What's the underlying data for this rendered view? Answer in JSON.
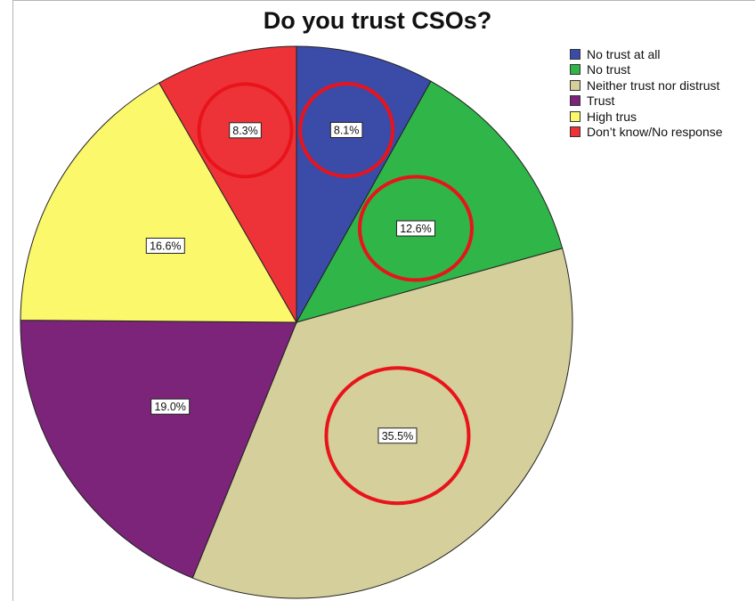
{
  "chart_data": {
    "type": "pie",
    "title": "Do you trust CSOs?",
    "start_angle_deg": 0,
    "direction": "clockwise",
    "label_format": "{value}%",
    "slices": [
      {
        "label": "No trust at all",
        "value": 8.1,
        "color": "#3b4ba8"
      },
      {
        "label": "No trust",
        "value": 12.6,
        "color": "#2fb548"
      },
      {
        "label": "Neither trust nor distrust",
        "value": 35.5,
        "color": "#d4cf9b"
      },
      {
        "label": "Trust",
        "value": 19.0,
        "color": "#7b2479"
      },
      {
        "label": "High trus",
        "value": 16.6,
        "color": "#fbf86c"
      },
      {
        "label": "Don’t know/No response",
        "value": 8.3,
        "color": "#ee3338"
      }
    ],
    "legend_position": "top-right",
    "highlight_circles": [
      "No trust at all",
      "No trust",
      "Neither trust nor distrust",
      "Don’t know/No response"
    ],
    "highlight_color": "#e8141b"
  }
}
